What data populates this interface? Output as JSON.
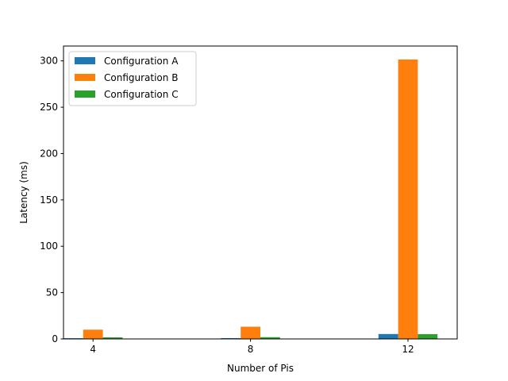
{
  "chart_data": {
    "type": "bar",
    "title": "",
    "xlabel": "Number of Pis",
    "ylabel": "Latency (ms)",
    "categories": [
      "4",
      "8",
      "12"
    ],
    "x": [
      4,
      8,
      12
    ],
    "xlim": [
      3.25,
      13.25
    ],
    "ylim": [
      0,
      316
    ],
    "yticks": [
      0,
      50,
      100,
      150,
      200,
      250,
      300
    ],
    "grid": false,
    "legend_position": "top-left",
    "series": [
      {
        "name": "Configuration A",
        "color": "#1f77b4",
        "values": [
          0.8,
          0.9,
          5.3
        ]
      },
      {
        "name": "Configuration B",
        "color": "#ff7f0e",
        "values": [
          10.0,
          13.2,
          301.5
        ]
      },
      {
        "name": "Configuration C",
        "color": "#2ca02c",
        "values": [
          1.7,
          1.9,
          5.2
        ]
      }
    ]
  }
}
